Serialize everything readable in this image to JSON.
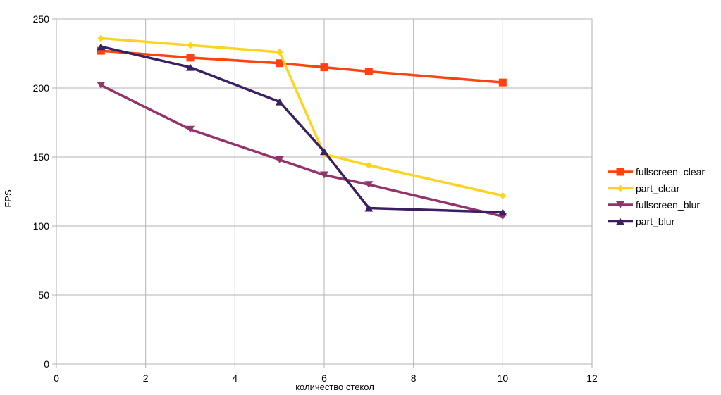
{
  "chart_data": {
    "type": "line",
    "title": "",
    "xlabel": "количество стекол",
    "ylabel": "FPS",
    "xlim": [
      0,
      12
    ],
    "ylim": [
      0,
      250
    ],
    "xticks": [
      0,
      2,
      4,
      6,
      8,
      10,
      12
    ],
    "yticks": [
      0,
      50,
      100,
      150,
      200,
      250
    ],
    "grid": true,
    "legend_position": "right",
    "series": [
      {
        "name": "fullscreen_clear",
        "color": "#ff420e",
        "marker": "square",
        "x": [
          1,
          3,
          5,
          6,
          7,
          10
        ],
        "y": [
          227,
          222,
          218,
          215,
          212,
          204
        ]
      },
      {
        "name": "part_clear",
        "color": "#ffd320",
        "marker": "diamond",
        "x": [
          1,
          3,
          5,
          6,
          7,
          10
        ],
        "y": [
          236,
          231,
          226,
          152,
          144,
          122
        ]
      },
      {
        "name": "fullscreen_blur",
        "color": "#7e0021",
        "marker": "triangle-down",
        "x": [
          1,
          3,
          5,
          6,
          7,
          10
        ],
        "y": [
          202,
          170,
          148,
          137,
          130,
          107
        ]
      },
      {
        "name": "part_blur",
        "color": "#3b1f63",
        "marker": "triangle-up",
        "x": [
          1,
          3,
          5,
          6,
          7,
          10
        ],
        "y": [
          230,
          215,
          190,
          154,
          113,
          110
        ]
      }
    ]
  }
}
